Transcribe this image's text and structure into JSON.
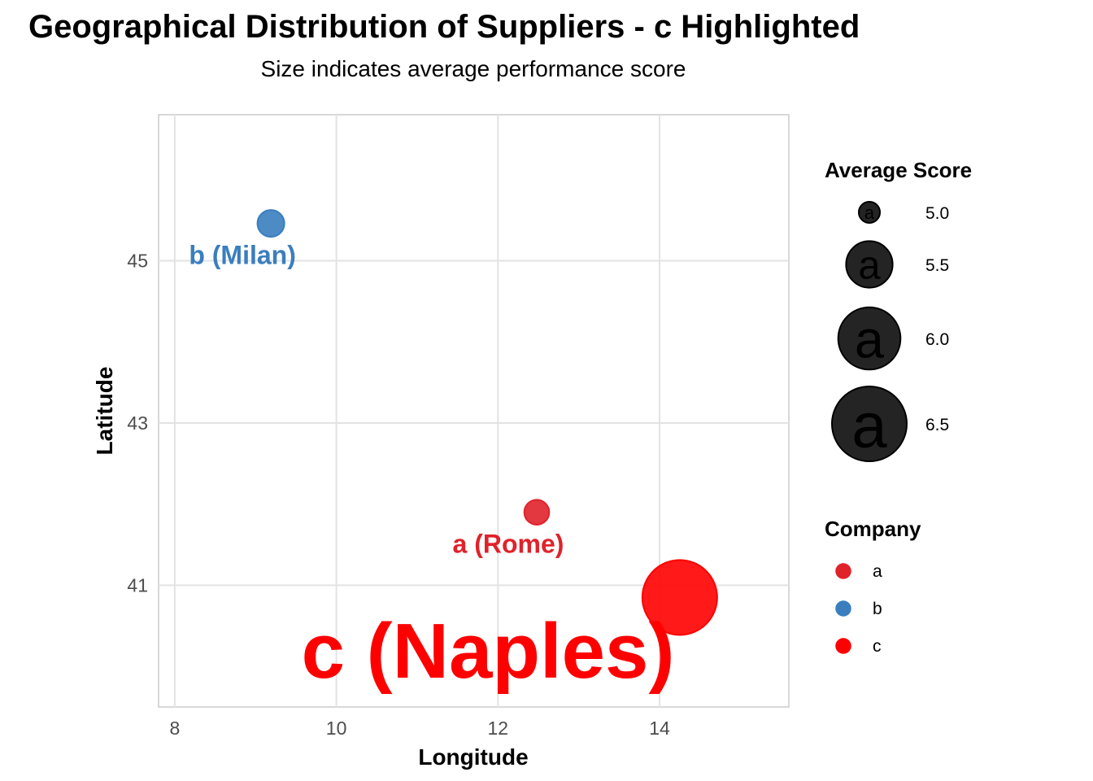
{
  "chart_data": {
    "type": "scatter",
    "title": "Geographical Distribution of Suppliers - c Highlighted",
    "subtitle": "Size indicates average performance score",
    "xlabel": "Longitude",
    "ylabel": "Latitude",
    "xlim": [
      7.8,
      15.6
    ],
    "ylim": [
      39.5,
      46.8
    ],
    "x_ticks": [
      8,
      10,
      12,
      14
    ],
    "y_ticks": [
      41,
      43,
      45
    ],
    "grid": true,
    "size_scale": {
      "min_score": 5.0,
      "max_score": 6.5
    },
    "points": [
      {
        "company": "b",
        "label": "b (Milan)",
        "x": 9.19,
        "y": 45.46,
        "score": 5.08,
        "color": "#3a7ebe",
        "highlighted": false
      },
      {
        "company": "a",
        "label": "a (Rome)",
        "x": 12.48,
        "y": 41.9,
        "score": 5.05,
        "color": "#e0222a",
        "highlighted": false
      },
      {
        "company": "c",
        "label": "c (Naples)",
        "x": 14.25,
        "y": 40.85,
        "score": 6.5,
        "color": "#ff0000",
        "highlighted": true
      }
    ],
    "legends": {
      "size": {
        "title": "Average Score",
        "items": [
          {
            "label": "5.0",
            "value": 5.0
          },
          {
            "label": "5.5",
            "value": 5.5
          },
          {
            "label": "6.0",
            "value": 6.0
          },
          {
            "label": "6.5",
            "value": 6.5
          }
        ]
      },
      "color": {
        "title": "Company",
        "items": [
          {
            "label": "a",
            "color": "#e0222a"
          },
          {
            "label": "b",
            "color": "#3a7ebe"
          },
          {
            "label": "c",
            "color": "#ff0000"
          }
        ]
      }
    }
  }
}
